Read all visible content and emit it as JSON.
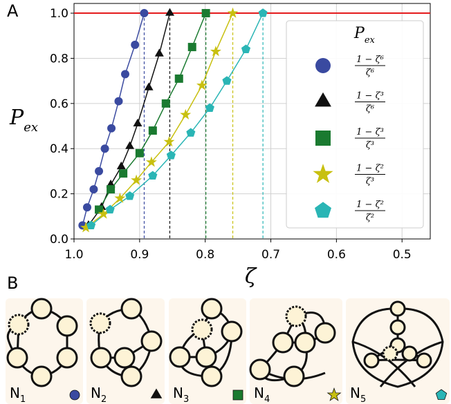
{
  "chart_data": {
    "type": "line",
    "panel_label": "A",
    "xlabel": "ζ",
    "ylabel": {
      "main": "P",
      "sub": "ex"
    },
    "xlim": [
      1.0,
      0.457
    ],
    "ylim": [
      0,
      1.043
    ],
    "xticks": [
      {
        "value": 1.0,
        "label": "1.0"
      },
      0.9,
      0.8,
      0.7,
      0.6,
      0.5
    ],
    "yticks": [
      {
        "value": 0,
        "label": "0.0"
      },
      0.2,
      0.4,
      0.6,
      0.8,
      {
        "value": 1.0,
        "label": "1.0"
      }
    ],
    "grid": true,
    "reference_line": {
      "value": 1.0,
      "color": "#e41a1c"
    },
    "legend": {
      "title": {
        "main": "P",
        "sub": "ex"
      },
      "position": "right"
    },
    "series": [
      {
        "numerator": "1 − ζ⁶",
        "denominator": "ζ⁶",
        "marker": "circle",
        "color": "#3a4aa0",
        "x": [
          0.987,
          0.98,
          0.97,
          0.962,
          0.953,
          0.943,
          0.932,
          0.922,
          0.907,
          0.893
        ],
        "values": [
          0.06,
          0.14,
          0.22,
          0.3,
          0.4,
          0.49,
          0.61,
          0.73,
          0.86,
          1.0
        ]
      },
      {
        "numerator": "1 − ζ³",
        "denominator": "ζ⁶",
        "marker": "triangle",
        "color": "#111111",
        "x": [
          0.978,
          0.958,
          0.944,
          0.928,
          0.915,
          0.903,
          0.886,
          0.87,
          0.854
        ],
        "values": [
          0.06,
          0.14,
          0.24,
          0.32,
          0.41,
          0.51,
          0.67,
          0.82,
          1.0
        ]
      },
      {
        "numerator": "1 − ζ³",
        "denominator": "ζ³",
        "marker": "square",
        "color": "#1a7a30",
        "x": [
          0.962,
          0.944,
          0.925,
          0.9,
          0.88,
          0.86,
          0.84,
          0.82,
          0.799
        ],
        "values": [
          0.13,
          0.22,
          0.29,
          0.38,
          0.48,
          0.6,
          0.71,
          0.85,
          1.0
        ]
      },
      {
        "numerator": "1 − ζ²",
        "denominator": "ζ³",
        "marker": "star",
        "color": "#c8c010",
        "x": [
          0.982,
          0.955,
          0.93,
          0.905,
          0.882,
          0.855,
          0.83,
          0.805,
          0.784,
          0.758
        ],
        "values": [
          0.05,
          0.11,
          0.18,
          0.26,
          0.34,
          0.43,
          0.55,
          0.68,
          0.83,
          1.0
        ]
      },
      {
        "numerator": "1 − ζ²",
        "denominator": "ζ²",
        "marker": "pentagon",
        "color": "#2ab5b5",
        "x": [
          0.974,
          0.945,
          0.915,
          0.88,
          0.852,
          0.822,
          0.793,
          0.767,
          0.738,
          0.712
        ],
        "values": [
          0.06,
          0.13,
          0.19,
          0.28,
          0.37,
          0.47,
          0.58,
          0.7,
          0.84,
          1.0
        ]
      }
    ]
  },
  "panel_b": {
    "panel_label": "B",
    "networks": [
      {
        "label": "N",
        "subscript": "1"
      },
      {
        "label": "N",
        "subscript": "2"
      },
      {
        "label": "N",
        "subscript": "3"
      },
      {
        "label": "N",
        "subscript": "4"
      },
      {
        "label": "N",
        "subscript": "5"
      }
    ]
  }
}
